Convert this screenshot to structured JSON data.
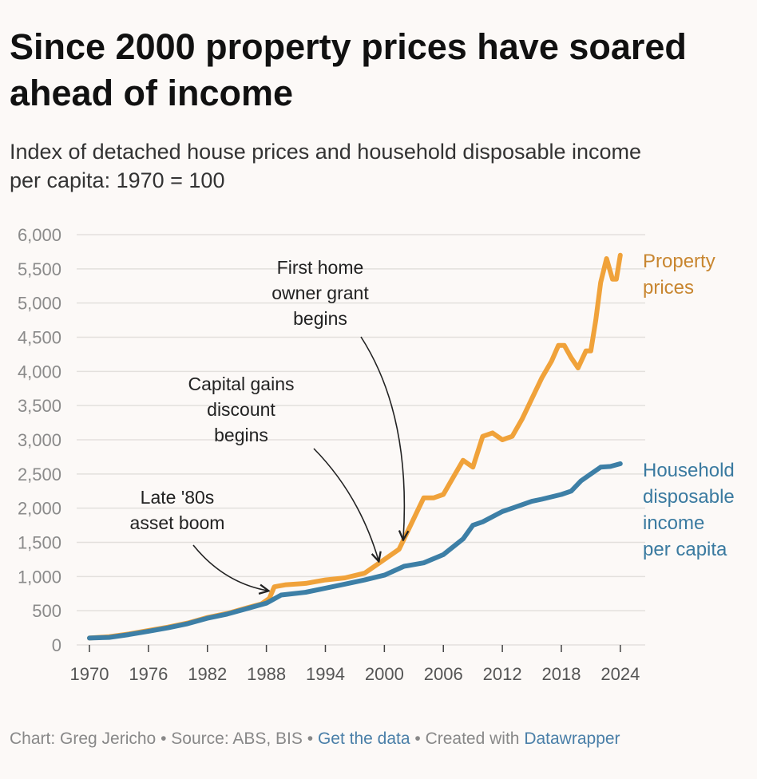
{
  "header": {
    "title": "Since 2000 property prices have soared ahead of income",
    "subtitle_line1": "Index of detached house prices and household disposable income",
    "subtitle_line2": "per capita: 1970 = 100"
  },
  "footer": {
    "credit": "Chart: Greg Jericho",
    "source": "Source: ABS, BIS",
    "data_link": "Get the data",
    "created": "Created with",
    "tool_link": "Datawrapper",
    "separator": "•"
  },
  "colors": {
    "property": "#f0a23a",
    "property_label": "#c88630",
    "income": "#3d7fa6",
    "income_label": "#3a7aa0",
    "grid": "#e3e0dd",
    "axis_text": "#8a8a8a"
  },
  "chart_data": {
    "type": "line",
    "title": "Since 2000 property prices have soared ahead of income",
    "subtitle": "Index of detached house prices and household disposable income per capita: 1970 = 100",
    "xlim": [
      1970,
      2024.5
    ],
    "ylim": [
      0,
      6000
    ],
    "x_ticks": [
      1970,
      1976,
      1982,
      1988,
      1994,
      2000,
      2006,
      2012,
      2018,
      2024
    ],
    "y_ticks": [
      0,
      500,
      1000,
      1500,
      2000,
      2500,
      3000,
      3500,
      4000,
      4500,
      5000,
      5500,
      6000
    ],
    "y_tick_labels": [
      "0",
      "500",
      "1,000",
      "1,500",
      "2,000",
      "2,500",
      "3,000",
      "3,500",
      "4,000",
      "4,500",
      "5,000",
      "5,500",
      "6,000"
    ],
    "grid": true,
    "series": [
      {
        "name": "Property prices",
        "label_lines": [
          "Property",
          "prices"
        ],
        "points": [
          [
            1970,
            100
          ],
          [
            1972,
            120
          ],
          [
            1974,
            160
          ],
          [
            1976,
            210
          ],
          [
            1978,
            260
          ],
          [
            1980,
            320
          ],
          [
            1982,
            400
          ],
          [
            1984,
            460
          ],
          [
            1986,
            540
          ],
          [
            1987.5,
            600
          ],
          [
            1988.3,
            680
          ],
          [
            1988.8,
            850
          ],
          [
            1990,
            880
          ],
          [
            1992,
            900
          ],
          [
            1994,
            950
          ],
          [
            1996,
            980
          ],
          [
            1998,
            1050
          ],
          [
            2000,
            1250
          ],
          [
            2001.5,
            1400
          ],
          [
            2002.5,
            1700
          ],
          [
            2003.5,
            2000
          ],
          [
            2004,
            2150
          ],
          [
            2005,
            2150
          ],
          [
            2006,
            2200
          ],
          [
            2007,
            2450
          ],
          [
            2008,
            2700
          ],
          [
            2009,
            2600
          ],
          [
            2010,
            3050
          ],
          [
            2011,
            3100
          ],
          [
            2012,
            3000
          ],
          [
            2013,
            3050
          ],
          [
            2014,
            3300
          ],
          [
            2015,
            3600
          ],
          [
            2016,
            3900
          ],
          [
            2017,
            4150
          ],
          [
            2017.7,
            4380
          ],
          [
            2018.3,
            4380
          ],
          [
            2019,
            4200
          ],
          [
            2019.7,
            4050
          ],
          [
            2020.5,
            4300
          ],
          [
            2021,
            4300
          ],
          [
            2021.5,
            4750
          ],
          [
            2022,
            5300
          ],
          [
            2022.6,
            5650
          ],
          [
            2023.2,
            5350
          ],
          [
            2023.6,
            5350
          ],
          [
            2024,
            5700
          ]
        ]
      },
      {
        "name": "Household disposable income per capita",
        "label_lines": [
          "Household",
          "disposable",
          "income",
          "per capita"
        ],
        "points": [
          [
            1970,
            100
          ],
          [
            1972,
            110
          ],
          [
            1974,
            150
          ],
          [
            1976,
            200
          ],
          [
            1978,
            250
          ],
          [
            1980,
            310
          ],
          [
            1982,
            390
          ],
          [
            1984,
            450
          ],
          [
            1986,
            530
          ],
          [
            1988,
            610
          ],
          [
            1989.5,
            730
          ],
          [
            1992,
            770
          ],
          [
            1994,
            830
          ],
          [
            1996,
            890
          ],
          [
            1998,
            950
          ],
          [
            2000,
            1020
          ],
          [
            2002,
            1150
          ],
          [
            2004,
            1200
          ],
          [
            2006,
            1320
          ],
          [
            2008,
            1550
          ],
          [
            2009,
            1750
          ],
          [
            2010,
            1800
          ],
          [
            2012,
            1950
          ],
          [
            2013,
            2000
          ],
          [
            2015,
            2100
          ],
          [
            2016,
            2130
          ],
          [
            2018,
            2200
          ],
          [
            2019,
            2250
          ],
          [
            2020,
            2400
          ],
          [
            2021,
            2500
          ],
          [
            2022,
            2600
          ],
          [
            2023,
            2610
          ],
          [
            2024,
            2650
          ]
        ]
      }
    ],
    "annotations": [
      {
        "lines": [
          "First home",
          "owner grant",
          "begins"
        ],
        "target": [
          2000.7,
          1430
        ]
      },
      {
        "lines": [
          "Capital gains",
          "discount",
          "begins"
        ],
        "target": [
          1999.0,
          1230
        ]
      },
      {
        "lines": [
          "Late '80s",
          "asset boom"
        ],
        "target": [
          1988.0,
          760
        ]
      }
    ]
  }
}
